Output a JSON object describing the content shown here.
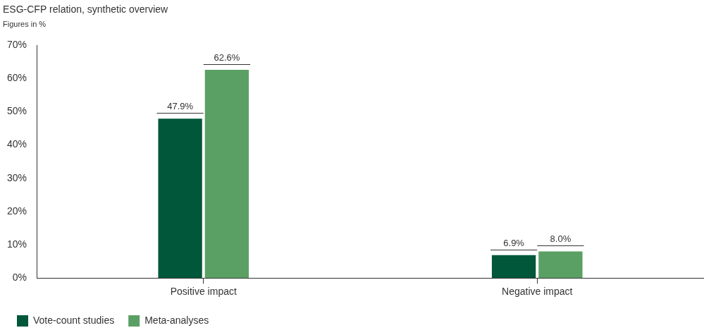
{
  "chart_data": {
    "type": "bar",
    "title": "ESG-CFP relation, synthetic overview",
    "subtitle": "Figures in %",
    "categories": [
      "Positive impact",
      "Negative impact"
    ],
    "series": [
      {
        "name": "Vote-count studies",
        "color": "#00573a",
        "values": [
          47.9,
          6.9
        ],
        "value_labels": [
          "47.9%",
          "6.9%"
        ]
      },
      {
        "name": "Meta-analyses",
        "color": "#5aa064",
        "values": [
          62.6,
          8.0
        ],
        "value_labels": [
          "62.6%",
          "8.0%"
        ]
      }
    ],
    "ylim": [
      0,
      70
    ],
    "yticks": [
      {
        "value": 0,
        "label": "0%"
      },
      {
        "value": 10,
        "label": "10%"
      },
      {
        "value": 20,
        "label": "20%"
      },
      {
        "value": 30,
        "label": "30%"
      },
      {
        "value": 40,
        "label": "40%"
      },
      {
        "value": 50,
        "label": "50%"
      },
      {
        "value": 60,
        "label": "60%"
      },
      {
        "value": 70,
        "label": "70%"
      }
    ],
    "grid": false,
    "legend": "bottom-left",
    "data_labels": true
  }
}
